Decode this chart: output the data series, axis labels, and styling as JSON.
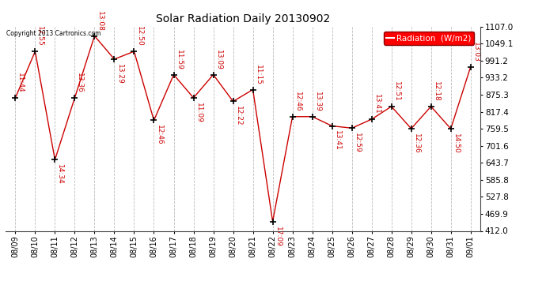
{
  "title": "Solar Radiation Daily 20130902",
  "copyright": "Copyright 2013 Cartronics.com",
  "legend_label": "Radiation  (W/m2)",
  "line_color": "#cc0000",
  "background_color": "#ffffff",
  "grid_color": "#bbbbbb",
  "ylim": [
    412.0,
    1107.0
  ],
  "yticks": [
    412.0,
    469.9,
    527.8,
    585.8,
    643.7,
    701.6,
    759.5,
    817.4,
    875.3,
    933.2,
    991.2,
    1049.1,
    1107.0
  ],
  "ytick_labels": [
    "412.0",
    "469.9",
    "527.8",
    "585.8",
    "643.7",
    "701.6",
    "759.5",
    "817.4",
    "875.3",
    "933.2",
    "991.2",
    "1049.1",
    "1107.0"
  ],
  "dates": [
    "08/09",
    "08/10",
    "08/11",
    "08/12",
    "08/13",
    "08/14",
    "08/15",
    "08/16",
    "08/17",
    "08/18",
    "08/19",
    "08/20",
    "08/21",
    "08/22",
    "08/23",
    "08/24",
    "08/25",
    "08/26",
    "08/27",
    "08/28",
    "08/29",
    "08/30",
    "08/31",
    "09/01"
  ],
  "values": [
    875.3,
    1049.1,
    643.7,
    875.3,
    1107.0,
    1020.0,
    1049.1,
    791.0,
    962.0,
    875.3,
    962.0,
    862.0,
    906.0,
    412.0,
    805.0,
    805.0,
    770.0,
    762.0,
    795.0,
    843.0,
    760.0,
    843.0,
    759.5,
    991.2
  ],
  "time_labels": [
    "11:44",
    "12:55",
    "14:34",
    "13:36",
    "13:08",
    "13:29",
    "12:50",
    "12:46",
    "11:59",
    "11:09",
    "13:09",
    "12:22",
    "11:15",
    "17:09",
    "12:46",
    "13:39",
    "13:41",
    "12:59",
    "13:41",
    "12:51",
    "12:36",
    "12:18",
    "14:50",
    "13:03"
  ],
  "label_above": [
    true,
    true,
    false,
    true,
    true,
    false,
    true,
    false,
    true,
    false,
    true,
    false,
    true,
    false,
    true,
    true,
    false,
    false,
    true,
    true,
    false,
    true,
    false,
    true
  ]
}
